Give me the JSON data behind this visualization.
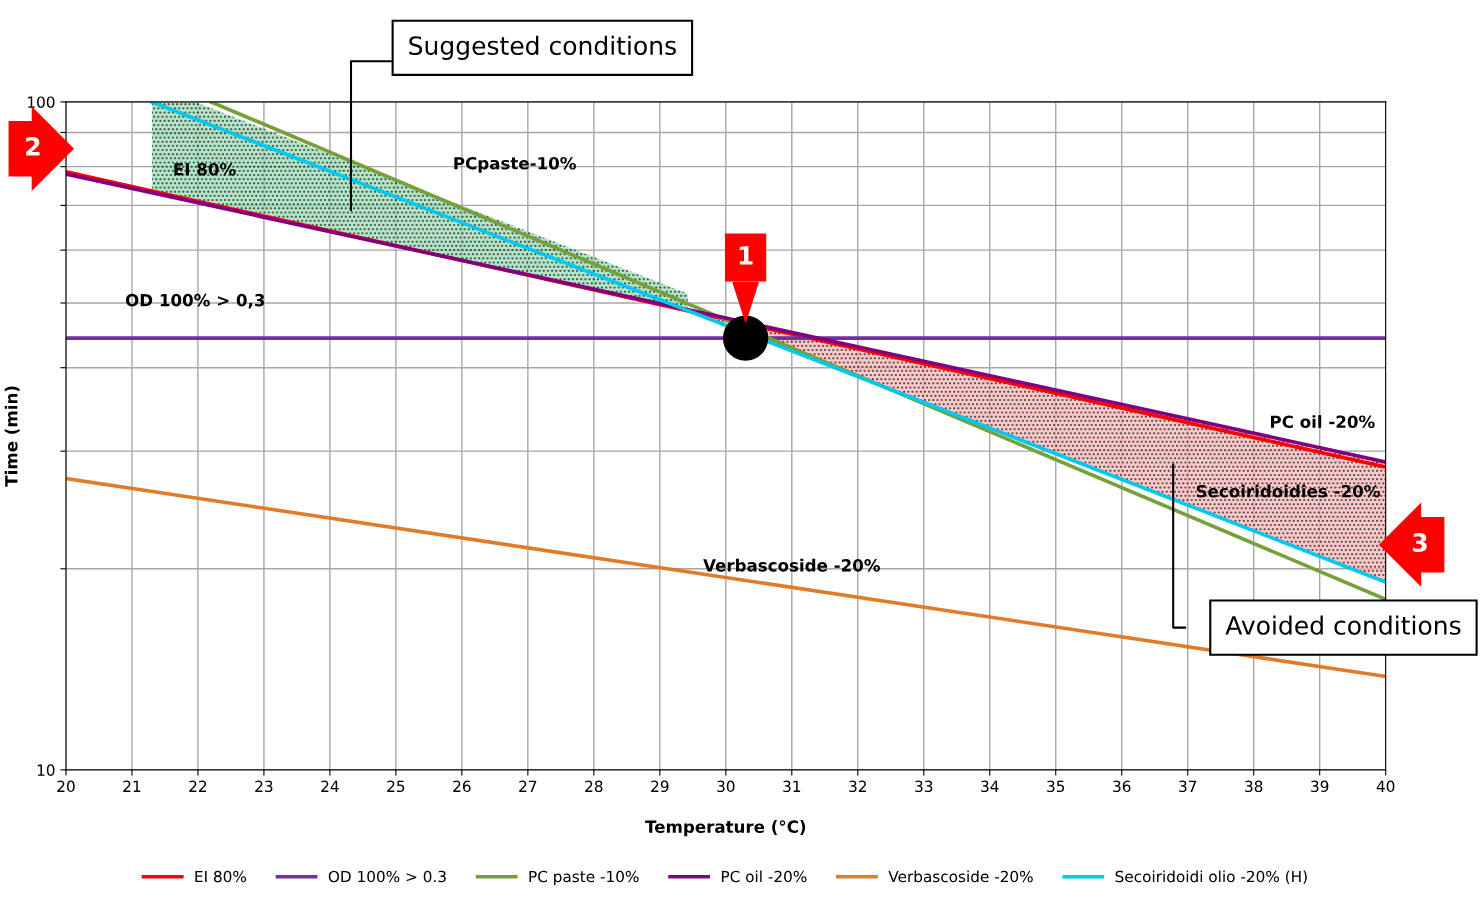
{
  "chart_data": {
    "type": "line",
    "xlabel": "Temperature (°C)",
    "ylabel": "Time (min)",
    "log": "y",
    "xlim": [
      20,
      40
    ],
    "xticks": [
      20,
      21,
      22,
      23,
      24,
      25,
      26,
      27,
      28,
      29,
      30,
      31,
      32,
      33,
      34,
      35,
      36,
      37,
      38,
      39,
      40
    ],
    "ylim": [
      10,
      100
    ],
    "yticks": [
      10,
      {
        "value": 20,
        "label": null
      },
      {
        "value": 30,
        "label": null
      },
      {
        "value": 40,
        "label": null
      },
      {
        "value": 50,
        "label": null
      },
      {
        "value": 60,
        "label": null
      },
      {
        "value": 70,
        "label": null
      },
      {
        "value": 80,
        "label": null
      },
      {
        "value": 90,
        "label": null
      },
      100
    ],
    "grid": true,
    "legend": "bottom",
    "marker": "none",
    "line_style": "solid",
    "series": [
      {
        "name": "EI 80%",
        "color": "#ff0000",
        "x": [
          20,
          40
        ],
        "values": [
          78.6,
          28.4
        ]
      },
      {
        "name": "OD 100% > 0.3",
        "color": "#7030a0",
        "x": [
          20,
          40
        ],
        "values": [
          44.3,
          44.3
        ]
      },
      {
        "name": "PC paste -10%",
        "color": "#77a03a",
        "x": [
          22.2,
          40
        ],
        "values": [
          100,
          18
        ]
      },
      {
        "name": "PC oil -20%",
        "color": "#800080",
        "x": [
          20,
          40
        ],
        "values": [
          78,
          28.9
        ]
      },
      {
        "name": "Verbascoside -20%",
        "color": "#e07b28",
        "x": [
          20,
          40
        ],
        "values": [
          27.3,
          13.8
        ]
      },
      {
        "name": "Secoiridoidi olio -20% (H)",
        "color": "#00c8f0",
        "x": [
          21.3,
          40
        ],
        "values": [
          100,
          19.1
        ]
      },
      {
        "type": "scatter",
        "marker": "circle",
        "color": "#000000",
        "x": [
          30.3
        ],
        "values": [
          44.3
        ]
      }
    ],
    "annotations": [
      "PCpaste-10%",
      "EI 80%",
      "OD 100% > 0,3",
      "PC oil -20%",
      "Secoiridoidies -20%",
      "Verbascoside -20%",
      "Suggested conditions",
      "Avoided conditions",
      {
        "text": "1",
        "x": 30.3,
        "y": 44.3
      },
      "2",
      "3"
    ]
  }
}
